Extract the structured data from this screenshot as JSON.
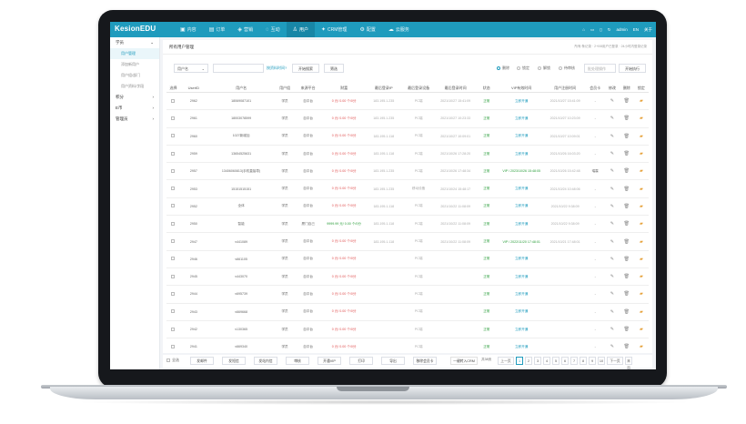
{
  "app": {
    "logo": "KesionEDU"
  },
  "nav": [
    {
      "icon": "monitor-icon",
      "glyph": "▣",
      "label": "内容"
    },
    {
      "icon": "order-icon",
      "glyph": "▤",
      "label": "订单"
    },
    {
      "icon": "tag-icon",
      "glyph": "◈",
      "label": "营销"
    },
    {
      "icon": "chat-icon",
      "glyph": "◌",
      "label": "互动"
    },
    {
      "icon": "user-icon",
      "glyph": "♙",
      "label": "用户",
      "active": true
    },
    {
      "icon": "crm-icon",
      "glyph": "✦",
      "label": "CRM管理"
    },
    {
      "icon": "gear-icon",
      "glyph": "⚙",
      "label": "配置"
    },
    {
      "icon": "cloud-icon",
      "glyph": "☁",
      "label": "云服务"
    }
  ],
  "topright": {
    "user": "admin",
    "lang": "EN",
    "about": "关于"
  },
  "sidebar": {
    "group1": "学员",
    "items": [
      "用户管理",
      "添加新用户",
      "用户组/部门",
      "用户资料/字段"
    ],
    "group2": "积分",
    "group3": "E币",
    "group4": "管理员"
  },
  "panel": {
    "title": "所有用户管理",
    "right_prefix": "所有:",
    "right_count": "",
    "right_suffix": "条记录  · 2+0/8用户已登录 · 24小时内登录记录"
  },
  "filter": {
    "field_select": "用户名",
    "advanced": "按资料时间?",
    "search_btn": "开始搜索",
    "filter_btn": "筛选",
    "radios": [
      {
        "label": "删除",
        "on": true
      },
      {
        "label": "锁定",
        "on": false
      },
      {
        "label": "解锁",
        "on": false
      },
      {
        "label": "待审核",
        "on": false
      }
    ],
    "batch_select": "批处理操作",
    "exec_btn": "开始执行"
  },
  "columns": [
    "选择",
    "UserID",
    "用户名",
    "用户组",
    "来源平台",
    "财富",
    "最后登录IP",
    "最后登录设备",
    "最后登录时间",
    "状态",
    "VIP有效时间",
    "用户注册时间",
    "会员卡",
    "修改",
    "删除",
    "锁定"
  ],
  "rows": [
    {
      "id": "2962",
      "name": "18069087101",
      "group": "学员",
      "src": "自平台",
      "bal": "0 元/ 0.00 个/0分",
      "ip": "183.195.1.235",
      "dev": "PC端",
      "last": "2021/10/27 15:41:09",
      "status": "正常",
      "vip": "立即开通",
      "reg": "2021/10/27 15:41:09",
      "card": "-"
    },
    {
      "id": "2961",
      "name": "18003078599",
      "group": "学员",
      "src": "自平台",
      "bal": "0 元/ 0.00 个/0分",
      "ip": "183.195.1.235",
      "dev": "PC端",
      "last": "2021/10/27 10:23:33",
      "status": "正常",
      "vip": "立即开通",
      "reg": "2021/10/27 10:23:09",
      "card": "-"
    },
    {
      "id": "2960",
      "name": "1027新增加",
      "group": "学员",
      "src": "自平台",
      "bal": "0 元/ 0.00 个/0分",
      "ip": "183.195.1.118",
      "dev": "PC端",
      "last": "2021/10/27 10:09:01",
      "status": "正常",
      "vip": "立即开通",
      "reg": "2021/10/27 10:09:01",
      "card": "-"
    },
    {
      "id": "2959",
      "name": "13654525631",
      "group": "学员",
      "src": "自平台",
      "bal": "0 元/ 0.00 个/0分",
      "ip": "183.195.1.118",
      "dev": "PC端",
      "last": "2021/10/26 17:28:20",
      "status": "正常",
      "vip": "立即开通",
      "reg": "2021/10/26 16:03:20",
      "card": "-"
    },
    {
      "id": "2957",
      "name": "13406060813(手机直接导)",
      "group": "学员",
      "src": "自平台",
      "bal": "0 元/ 0.00 个/0分",
      "ip": "183.195.1.235",
      "dev": "PC端",
      "last": "2021/10/26 17:48:34",
      "status": "正常",
      "vip": "VIP / 2023/10/26 15:48:05",
      "reg": "2021/10/26 15:42:48",
      "card": "瑞霖"
    },
    {
      "id": "2953",
      "name": "15151515151",
      "group": "学员",
      "src": "自平台",
      "bal": "0 元/ 0.00 个/0分",
      "ip": "183.195.1.235",
      "dev": "移动设备",
      "last": "2021/10/24 15:48:17",
      "status": "正常",
      "vip": "立即开通",
      "reg": "2021/10/24 10:48:06",
      "card": "-"
    },
    {
      "id": "2952",
      "name": "全体",
      "group": "学员",
      "src": "自平台",
      "bal": "0 元/ 0.00 个/0分",
      "ip": "183.195.1.118",
      "dev": "PC端",
      "last": "2021/10/22 11:08:09",
      "status": "正常",
      "vip": "立即开通",
      "reg": "2021/10/22 9:38:09",
      "card": "-"
    },
    {
      "id": "2950",
      "name": "智能",
      "group": "学员",
      "src": "厦门自己",
      "bal": "9999.99 元/ 0.00 个/0分",
      "ip": "183.195.1.118",
      "dev": "PC端",
      "last": "2021/10/22 11:08:09",
      "status": "正常",
      "vip": "立即开通",
      "reg": "2021/10/22 9:38:09",
      "card": "-"
    },
    {
      "id": "2947",
      "name": "v441089",
      "group": "学员",
      "src": "自平台",
      "bal": "0 元/ 0.00 个/0分",
      "ip": "183.195.1.118",
      "dev": "PC端",
      "last": "2021/10/22 11:08:09",
      "status": "正常",
      "vip": "VIP / 2022/11/20 17:48:01",
      "reg": "2021/10/21 17:48:01",
      "card": "-"
    },
    {
      "id": "2946",
      "name": "v661105",
      "group": "学员",
      "src": "自平台",
      "bal": "0 元/ 0.00 个/0分",
      "ip": "",
      "dev": "PC端",
      "last": "",
      "status": "正常",
      "vip": "立即开通",
      "reg": "",
      "card": "-"
    },
    {
      "id": "2945",
      "name": "v443070",
      "group": "学员",
      "src": "自平台",
      "bal": "0 元/ 0.00 个/0分",
      "ip": "",
      "dev": "PC端",
      "last": "",
      "status": "正常",
      "vip": "立即开通",
      "reg": "",
      "card": "-"
    },
    {
      "id": "2944",
      "name": "v695739",
      "group": "学员",
      "src": "自平台",
      "bal": "0 元/ 0.00 个/0分",
      "ip": "",
      "dev": "PC端",
      "last": "",
      "status": "正常",
      "vip": "立即开通",
      "reg": "",
      "card": "-"
    },
    {
      "id": "2943",
      "name": "v669668",
      "group": "学员",
      "src": "自平台",
      "bal": "0 元/ 0.00 个/0分",
      "ip": "",
      "dev": "PC端",
      "last": "",
      "status": "正常",
      "vip": "立即开通",
      "reg": "",
      "card": "-"
    },
    {
      "id": "2942",
      "name": "v130365",
      "group": "学员",
      "src": "自平台",
      "bal": "0 元/ 0.00 个/0分",
      "ip": "",
      "dev": "PC端",
      "last": "",
      "status": "正常",
      "vip": "立即开通",
      "reg": "",
      "card": "-"
    },
    {
      "id": "2941",
      "name": "v669340",
      "group": "学员",
      "src": "自平台",
      "bal": "0 元/ 0.00 个/0分",
      "ip": "",
      "dev": "PC端",
      "last": "",
      "status": "正常",
      "vip": "立即开通",
      "reg": "",
      "card": "-"
    }
  ],
  "bottom": {
    "select_all": "全选",
    "buttons": [
      "发邮件",
      "发短信",
      "发站内信",
      "审核",
      "开通VIP",
      "打印",
      "导出",
      "移除会员卡"
    ],
    "crm": "一键转入CRM",
    "total": "共38页",
    "pages": [
      "上一页",
      "1",
      "2",
      "3",
      "4",
      "5",
      "6",
      "7",
      "8",
      "9",
      "10",
      "下一页",
      "末页"
    ]
  }
}
